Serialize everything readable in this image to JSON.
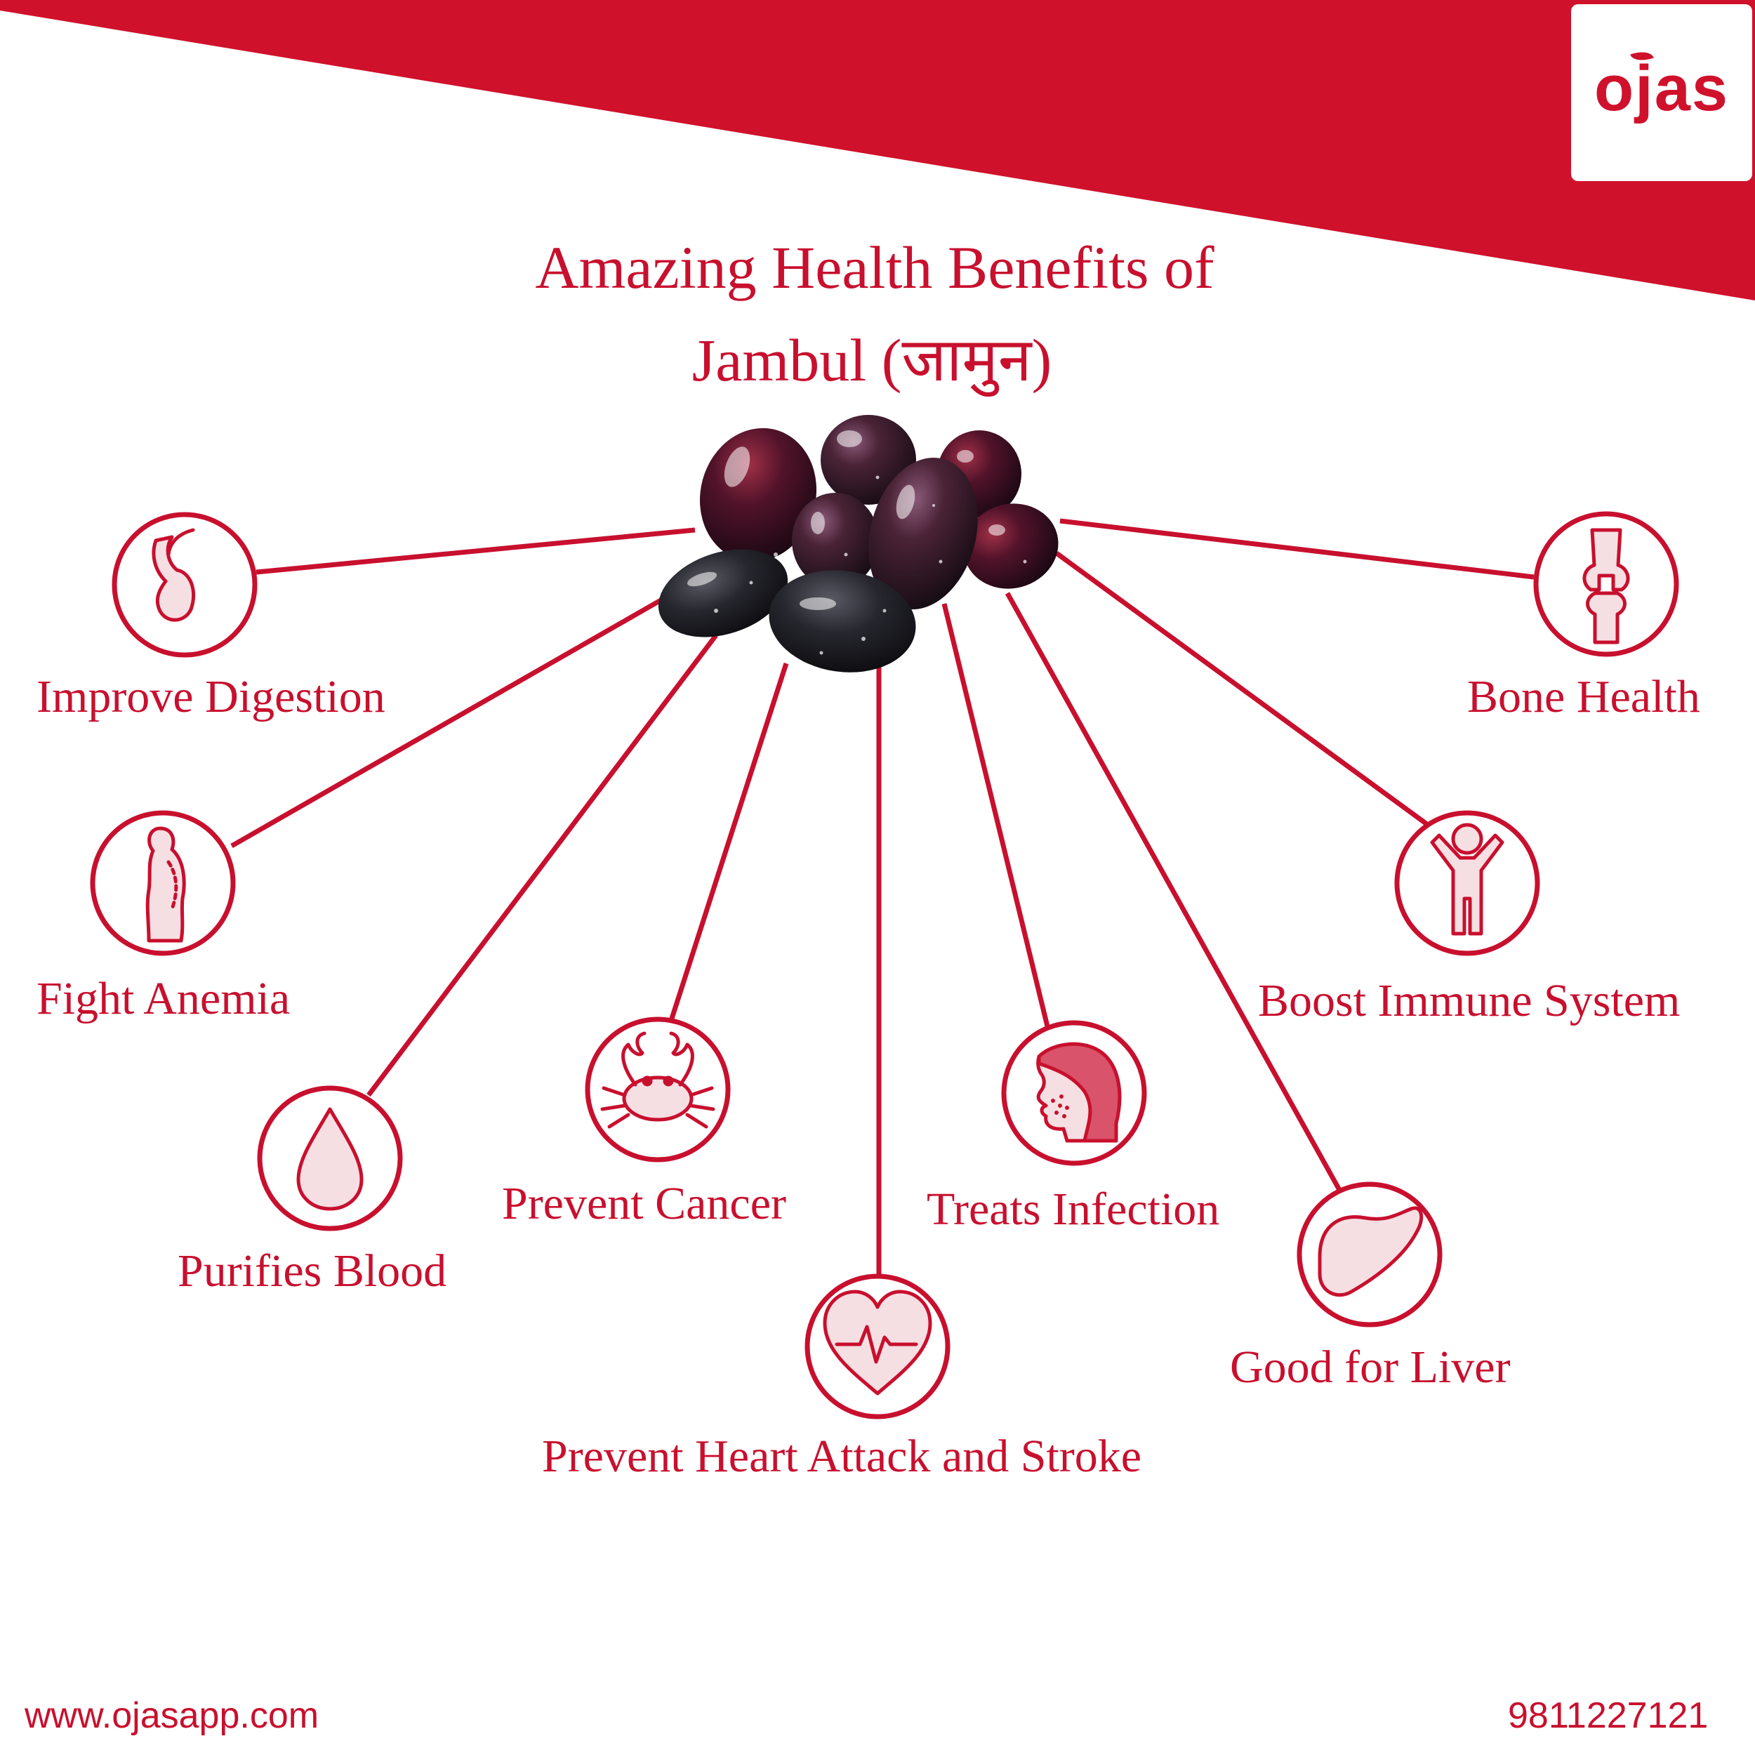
{
  "brand": {
    "logo_text": "ojas",
    "color": "#d0112b"
  },
  "title": {
    "line1": "Amazing Health Benefits of",
    "line2": "Jambul (जामुन)"
  },
  "benefits": [
    {
      "label": "Improve Digestion",
      "icon": "stomach-icon"
    },
    {
      "label": "Fight Anemia",
      "icon": "body-profile-icon"
    },
    {
      "label": "Purifies Blood",
      "icon": "blood-drop-icon"
    },
    {
      "label": "Prevent Cancer",
      "icon": "crab-icon"
    },
    {
      "label": "Prevent Heart Attack and Stroke",
      "icon": "heart-pulse-icon"
    },
    {
      "label": "Treats Infection",
      "icon": "face-acne-icon"
    },
    {
      "label": "Good for Liver",
      "icon": "liver-icon"
    },
    {
      "label": "Boost Immune System",
      "icon": "person-arms-up-icon"
    },
    {
      "label": "Bone Health",
      "icon": "knee-joint-icon"
    }
  ],
  "footer": {
    "website": "www.ojasapp.com",
    "phone": "9811227121"
  }
}
